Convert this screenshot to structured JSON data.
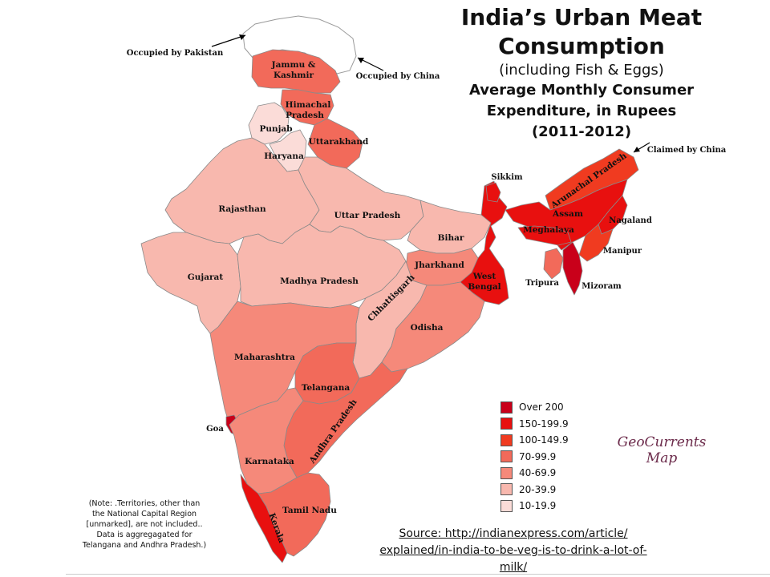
{
  "title": {
    "line1": "India’s Urban Meat",
    "line2": "Consumption",
    "line3": "(including Fish & Eggs)",
    "line4": "Average Monthly Consumer",
    "line5": "Expenditure, in Rupees",
    "line6": "(2011-2012)"
  },
  "colors": {
    "over_200": "#c9001a",
    "c150_199": "#e8100f",
    "c100_149": "#f03b20",
    "c70_99": "#f26a5a",
    "c40_69": "#f5897a",
    "c20_39": "#f8b8ae",
    "c10_19": "#fbdcd8"
  },
  "legend": {
    "items": [
      {
        "label": "Over 200",
        "color": "#c9001a"
      },
      {
        "label": "150-199.9",
        "color": "#e8100f"
      },
      {
        "label": "100-149.9",
        "color": "#f03b20"
      },
      {
        "label": "70-99.9",
        "color": "#f26a5a"
      },
      {
        "label": "40-69.9",
        "color": "#f5897a"
      },
      {
        "label": "20-39.9",
        "color": "#f8b8ae"
      },
      {
        "label": "10-19.9",
        "color": "#fbdcd8"
      }
    ]
  },
  "states": {
    "jammu_kashmir": {
      "name_l1": "Jammu &",
      "name_l2": "Kashmir",
      "category": "70-99.9"
    },
    "himachal": {
      "name_l1": "Himachal",
      "name_l2": "Pradesh",
      "category": "70-99.9"
    },
    "punjab": {
      "name": "Punjab",
      "category": "10-19.9"
    },
    "haryana": {
      "name": "Haryana",
      "category": "10-19.9"
    },
    "uttarakhand": {
      "name": "Uttarakhand",
      "category": "70-99.9"
    },
    "rajasthan": {
      "name": "Rajasthan",
      "category": "20-39.9"
    },
    "uttar_pradesh": {
      "name": "Uttar Pradesh",
      "category": "20-39.9"
    },
    "bihar": {
      "name": "Bihar",
      "category": "20-39.9"
    },
    "gujarat": {
      "name": "Gujarat",
      "category": "20-39.9"
    },
    "madhya_pradesh": {
      "name": "Madhya Pradesh",
      "category": "20-39.9"
    },
    "jharkhand": {
      "name": "Jharkhand",
      "category": "40-69.9"
    },
    "west_bengal": {
      "name_l1": "West",
      "name_l2": "Bengal",
      "category": "150-199.9"
    },
    "chhattisgarh": {
      "name": "Chhattisgarh",
      "category": "20-39.9"
    },
    "odisha": {
      "name": "Odisha",
      "category": "40-69.9"
    },
    "maharashtra": {
      "name": "Maharashtra",
      "category": "40-69.9"
    },
    "telangana": {
      "name": "Telangana",
      "category": "70-99.9"
    },
    "andhra_pradesh": {
      "name": "Andhra Pradesh",
      "category": "70-99.9"
    },
    "goa": {
      "name": "Goa",
      "category": "Over 200"
    },
    "karnataka": {
      "name": "Karnataka",
      "category": "40-69.9"
    },
    "tamil_nadu": {
      "name": "Tamil Nadu",
      "category": "70-99.9"
    },
    "kerala": {
      "name": "Kerala",
      "category": "150-199.9"
    },
    "sikkim": {
      "name": "Sikkim",
      "category": "150-199.9"
    },
    "arunachal_pradesh": {
      "name": "Arunachal Pradesh",
      "category": "100-149.9"
    },
    "assam": {
      "name": "Assam",
      "category": "150-199.9"
    },
    "meghalaya": {
      "name": "Meghalaya",
      "category": "150-199.9"
    },
    "nagaland": {
      "name": "Nagaland",
      "category": "150-199.9"
    },
    "manipur": {
      "name": "Manipur",
      "category": "100-149.9"
    },
    "tripura": {
      "name": "Tripura",
      "category": "70-99.9"
    },
    "mizoram": {
      "name": "Mizoram",
      "category": "Over 200"
    }
  },
  "annotations": {
    "occupied_pakistan": "Occupied by Pakistan",
    "occupied_china": "Occupied by China",
    "claimed_china": "Claimed by China"
  },
  "credit": {
    "line1": "GeoCurrents",
    "line2": "Map"
  },
  "note": {
    "line1": "(Note: .Territories, other than",
    "line2": "the National Capital Region",
    "line3": "[unmarked], are not included..",
    "line4": "Data is aggregagated for",
    "line5": "Telangana and Andhra Pradesh.)"
  },
  "source": {
    "line1": "Source: http://indianexpress.com/article/",
    "line2": "explained/in-india-to-be-veg-is-to-drink-a-lot-of-",
    "line3": "milk/"
  }
}
